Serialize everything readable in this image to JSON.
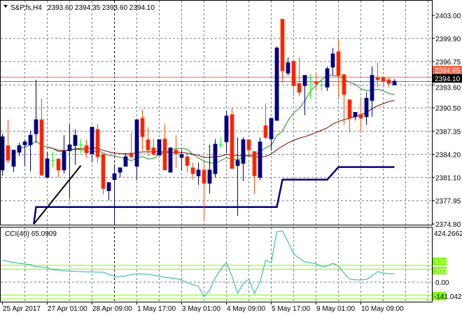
{
  "header": {
    "arrow_icon": "triangle-down-icon",
    "symbol": "S&P,fs,H4",
    "ohlc": "2393.60 2394.35 2393.60 2394.10"
  },
  "price_axis": [
    "2403.00",
    "2399.90",
    "2396.75",
    "2393.60",
    "2390.50",
    "2387.35",
    "2384.20",
    "2381.10",
    "2377.95",
    "2374.80"
  ],
  "price_axis_values": [
    2403.0,
    2399.9,
    2396.75,
    2393.6,
    2390.5,
    2387.35,
    2384.2,
    2381.1,
    2377.95,
    2374.8
  ],
  "price_range": [
    2374.8,
    2403.0
  ],
  "ask_line": {
    "label": "2394.65",
    "value": 2394.65,
    "color": "#ff6347"
  },
  "bid_line": {
    "label": "2394.10",
    "value": 2394.1,
    "color": "#000000"
  },
  "time_axis": [
    "25 Apr 2017",
    "27 Apr 01:00",
    "28 Apr 09:00",
    "1 May 17:00",
    "3 May 01:00",
    "4 May 09:00",
    "5 May 17:00",
    "9 May 01:00",
    "10 May 09:00"
  ],
  "colors": {
    "bull": "#000080",
    "bear": "#ff2000",
    "doji": "#00ff00",
    "ma_fast": "#228b22",
    "ma_slow": "#800000",
    "step": "#000080",
    "cci": "#20b2aa",
    "levels": "#7cfc00"
  },
  "candles": [
    [
      2382.1,
      2387.0,
      2381.3,
      2386.6
    ],
    [
      2385.4,
      2388.9,
      2383.0,
      2383.4
    ],
    [
      2382.6,
      2384.8,
      2381.8,
      2384.8
    ],
    [
      2384.5,
      2385.8,
      2384.0,
      2385.4
    ],
    [
      2385.5,
      2386.2,
      2382.6,
      2385.9
    ],
    [
      2385.5,
      2387.4,
      2381.9,
      2386.8
    ],
    [
      2387.0,
      2394.3,
      2385.8,
      2388.9
    ],
    [
      2388.9,
      2391.8,
      2381.4,
      2381.4
    ],
    [
      2381.1,
      2384.6,
      2381.1,
      2383.6
    ],
    [
      2383.4,
      2384.6,
      2382.4,
      2383.4
    ],
    [
      2383.6,
      2383.6,
      2381.1,
      2382.1
    ],
    [
      2382.1,
      2386.8,
      2381.6,
      2384.6
    ],
    [
      2384.7,
      2388.3,
      2378.3,
      2385.5
    ],
    [
      2385.4,
      2387.6,
      2382.8,
      2386.8
    ],
    [
      2385.5,
      2386.3,
      2384.3,
      2385.5
    ],
    [
      2385.4,
      2386.2,
      2383.8,
      2384.4
    ],
    [
      2384.3,
      2387.9,
      2383.1,
      2387.9
    ],
    [
      2387.6,
      2388.3,
      2383.1,
      2383.9
    ],
    [
      2384.2,
      2384.2,
      2378.8,
      2379.6
    ],
    [
      2379.3,
      2380.4,
      2378.0,
      2380.4
    ],
    [
      2380.8,
      2382.7,
      2374.8,
      2381.6
    ],
    [
      2381.8,
      2382.4,
      2381.1,
      2382.4
    ],
    [
      2382.6,
      2384.4,
      2382.6,
      2383.9
    ],
    [
      2384.4,
      2387.1,
      2383.6,
      2383.9
    ],
    [
      2382.6,
      2388.9,
      2380.7,
      2388.9
    ],
    [
      2389.1,
      2390.3,
      2384.7,
      2386.6
    ],
    [
      2386.2,
      2387.9,
      2384.0,
      2384.8
    ],
    [
      2385.1,
      2386.3,
      2384.2,
      2384.2
    ],
    [
      2384.1,
      2386.2,
      2384.1,
      2386.2
    ],
    [
      2386.3,
      2388.3,
      2382.1,
      2382.1
    ],
    [
      2381.8,
      2385.1,
      2381.8,
      2385.1
    ],
    [
      2384.8,
      2386.8,
      2382.4,
      2384.3
    ],
    [
      2383.8,
      2384.8,
      2382.0,
      2384.2
    ],
    [
      2383.9,
      2384.4,
      2381.8,
      2382.7
    ],
    [
      2382.4,
      2383.1,
      2380.8,
      2381.6
    ],
    [
      2381.3,
      2383.1,
      2380.1,
      2382.1
    ],
    [
      2382.1,
      2383.1,
      2375.3,
      2380.3
    ],
    [
      2380.3,
      2385.5,
      2378.9,
      2382.1
    ],
    [
      2381.6,
      2386.3,
      2381.1,
      2385.6
    ],
    [
      2385.5,
      2386.5,
      2385.1,
      2385.5
    ],
    [
      2385.9,
      2390.1,
      2384.4,
      2389.4
    ],
    [
      2389.6,
      2390.6,
      2382.3,
      2382.3
    ],
    [
      2382.7,
      2386.5,
      2375.9,
      2383.4
    ],
    [
      2383.0,
      2386.5,
      2380.6,
      2386.2
    ],
    [
      2386.2,
      2386.2,
      2384.1,
      2384.8
    ],
    [
      2384.6,
      2384.6,
      2378.9,
      2381.3
    ],
    [
      2381.1,
      2386.5,
      2380.7,
      2385.9
    ],
    [
      2388.1,
      2391.1,
      2386.3,
      2386.5
    ],
    [
      2386.3,
      2389.1,
      2384.7,
      2389.1
    ],
    [
      2388.8,
      2398.8,
      2388.8,
      2398.6
    ],
    [
      2402.5,
      2402.5,
      2393.9,
      2395.5
    ],
    [
      2395.2,
      2397.3,
      2394.9,
      2396.6
    ],
    [
      2396.8,
      2396.8,
      2392.1,
      2393.5
    ],
    [
      2393.8,
      2397.3,
      2392.1,
      2392.6
    ],
    [
      2393.5,
      2394.9,
      2389.5,
      2394.9
    ],
    [
      2394.6,
      2395.0,
      2391.7,
      2394.6
    ],
    [
      2394.0,
      2395.3,
      2392.8,
      2393.8
    ],
    [
      2393.6,
      2394.3,
      2392.8,
      2393.6
    ],
    [
      2393.3,
      2396.1,
      2392.8,
      2395.8
    ],
    [
      2396.0,
      2398.6,
      2394.9,
      2397.8
    ],
    [
      2398.1,
      2399.8,
      2392.0,
      2394.9
    ],
    [
      2395.0,
      2395.0,
      2388.2,
      2392.3
    ],
    [
      2391.6,
      2391.6,
      2387.2,
      2389.1
    ],
    [
      2389.3,
      2389.9,
      2388.8,
      2389.9
    ],
    [
      2389.6,
      2391.7,
      2387.2,
      2389.1
    ],
    [
      2389.3,
      2392.6,
      2388.2,
      2391.8
    ],
    [
      2391.5,
      2396.1,
      2389.3,
      2394.9
    ],
    [
      2394.6,
      2396.6,
      2393.3,
      2394.3
    ],
    [
      2394.6,
      2394.8,
      2393.3,
      2394.1
    ],
    [
      2394.3,
      2394.6,
      2393.3,
      2393.8
    ],
    [
      2393.6,
      2394.35,
      2393.6,
      2394.1
    ]
  ],
  "step_line": [
    [
      5.6,
      2374.8
    ],
    [
      6,
      2377.1
    ],
    [
      49,
      2377.1
    ],
    [
      50,
      2380.8
    ],
    [
      58,
      2380.8
    ],
    [
      60,
      2382.5
    ],
    [
      70,
      2382.5
    ]
  ],
  "trend_line": [
    [
      5.6,
      2374.8
    ],
    [
      14,
      2382.7
    ]
  ],
  "cci": {
    "label": "CCI(40) 65.0909",
    "max_label": "424.2662",
    "min_label": "-141.0421",
    "zero_label": "0.00",
    "level_labels": [
      "130",
      "100"
    ],
    "levels": [
      130,
      100,
      -100,
      -130
    ],
    "values": [
      168,
      160,
      152,
      145,
      140,
      135,
      119,
      118,
      110,
      95,
      92,
      88,
      85,
      82,
      81,
      80,
      78,
      77,
      76,
      60,
      43,
      43,
      48,
      58,
      65,
      62,
      60,
      54,
      45,
      38,
      32,
      27,
      15,
      -5,
      -18,
      -32,
      -113,
      -60,
      32,
      100,
      151,
      43,
      -86,
      -10,
      22,
      -86,
      0,
      168,
      151,
      390,
      395,
      310,
      216,
      185,
      157,
      150,
      141,
      119,
      125,
      146,
      125,
      70,
      22,
      18,
      16,
      20,
      50,
      81,
      70,
      65,
      65
    ]
  }
}
